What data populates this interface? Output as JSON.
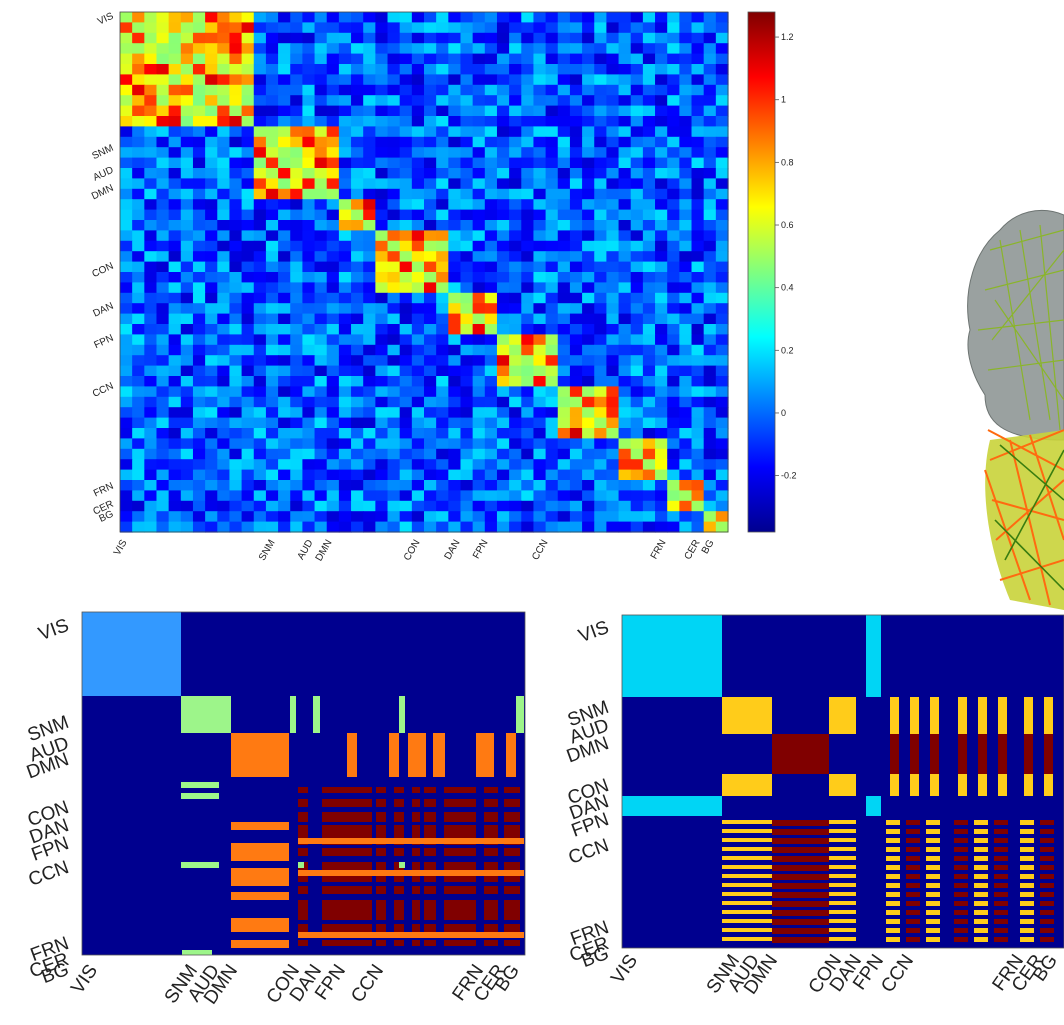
{
  "networks": [
    "VIS",
    "SNM",
    "AUD",
    "DMN",
    "CON",
    "DAN",
    "FPN",
    "CCN",
    "FRN",
    "CER",
    "BG"
  ],
  "colors": {
    "module_bg": "#00008f",
    "module_light_blue": "#3399ff",
    "module_cyan": "#00d5f5",
    "module_green": "#9df58a",
    "module_yellow": "#ffcc1a",
    "module_orange": "#ff7a12",
    "module_dark_red": "#800000",
    "brain_gray": "#9aa1a0",
    "brain_green": "#8ab52a",
    "brain_orange": "#ff6a10"
  },
  "chart_data": [
    {
      "type": "heatmap",
      "title": "",
      "colormap": "jet",
      "x_tick_labels": [
        "VIS",
        "SNM",
        "AUD",
        "DMN",
        "CON",
        "DAN",
        "FPN",
        "CCN",
        "FRN",
        "CER",
        "BG"
      ],
      "y_tick_labels": [
        "VIS",
        "SNM",
        "AUD",
        "DMN",
        "CON",
        "DAN",
        "FPN",
        "CCN",
        "FRN",
        "CER",
        "BG"
      ],
      "colorbar": {
        "ticks": [
          -0.2,
          0,
          0.2,
          0.4,
          0.6,
          0.8,
          1,
          1.2
        ],
        "tick_labels": [
          "-0.2",
          "0",
          "0.2",
          "0.4",
          "0.6",
          "0.8",
          "1",
          "1.2"
        ],
        "range": [
          -0.38,
          1.28
        ]
      }
    },
    {
      "type": "heatmap",
      "title": "",
      "x_tick_labels": [
        "VIS",
        "SNM",
        "AUD",
        "DMN",
        "CON",
        "DAN",
        "FPN",
        "CCN",
        "FRN",
        "CER",
        "BG"
      ],
      "y_tick_labels": [
        "VIS",
        "SNM",
        "AUD",
        "DMN",
        "CON",
        "DAN",
        "FPN",
        "CCN",
        "FRN",
        "CER",
        "BG"
      ]
    },
    {
      "type": "heatmap",
      "title": "",
      "x_tick_labels": [
        "VIS",
        "SNM",
        "AUD",
        "DMN",
        "CON",
        "DAN",
        "FPN",
        "CCN",
        "FRN",
        "CER",
        "BG"
      ],
      "y_tick_labels": [
        "VIS",
        "SNM",
        "AUD",
        "DMN",
        "CON",
        "DAN",
        "FPN",
        "CCN",
        "FRN",
        "CER",
        "BG"
      ]
    }
  ]
}
